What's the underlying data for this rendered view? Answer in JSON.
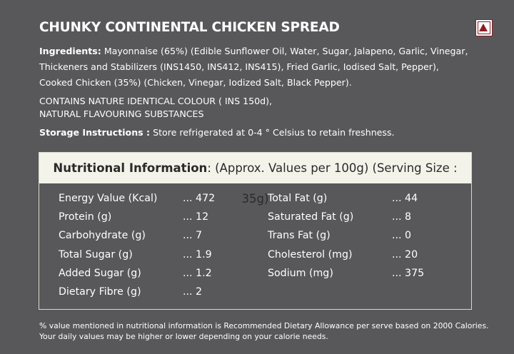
{
  "product": {
    "title": "CHUNKY CONTINENTAL CHICKEN SPREAD",
    "mark_color": "#8a1f24"
  },
  "ingredients": {
    "label": "Ingredients:",
    "text": " Mayonnaise (65%) (Edible Sunflower Oil, Water, Sugar, Jalapeno, Garlic, Vinegar, Thickeners and Stabilizers (INS1450, INS412, INS415), Fried Garlic, Iodised Salt, Pepper), Cooked Chicken (35%) (Chicken, Vinegar, Iodized Salt, Black Pepper)."
  },
  "contains": {
    "line1": "CONTAINS NATURE IDENTICAL COLOUR ( INS 150d),",
    "line2": "NATURAL FLAVOURING SUBSTANCES"
  },
  "storage": {
    "label": "Storage Instructions :",
    "text": " Store refrigerated at 0-4 ° Celsius to retain freshness."
  },
  "nutrition": {
    "header_bold": "Nutritional Information",
    "header_rest": ": (Approx. Values per 100g) (Serving Size : 35g)",
    "left": [
      {
        "name": "Energy Value (Kcal)",
        "value": "... 472"
      },
      {
        "name": "Protein (g)",
        "value": "... 12"
      },
      {
        "name": "Carbohydrate (g)",
        "value": "... 7"
      },
      {
        "name": "Total Sugar (g)",
        "value": "... 1.9"
      },
      {
        "name": "Added Sugar (g)",
        "value": "... 1.2"
      },
      {
        "name": "Dietary Fibre (g)",
        "value": "... 2"
      }
    ],
    "right": [
      {
        "name": "Total Fat (g)",
        "value": "... 44"
      },
      {
        "name": "Saturated Fat (g)",
        "value": "... 8"
      },
      {
        "name": "Trans Fat (g)",
        "value": "... 0"
      },
      {
        "name": "Cholesterol (mg)",
        "value": "... 20"
      },
      {
        "name": "Sodium (mg)",
        "value": "... 375"
      }
    ]
  },
  "footnote": {
    "line1": "% value mentioned in nutritional information is Recommended Dietary Allowance per serve based on 2000 Calories.",
    "line2": "Your daily values may be higher or lower depending on your calorie needs."
  }
}
